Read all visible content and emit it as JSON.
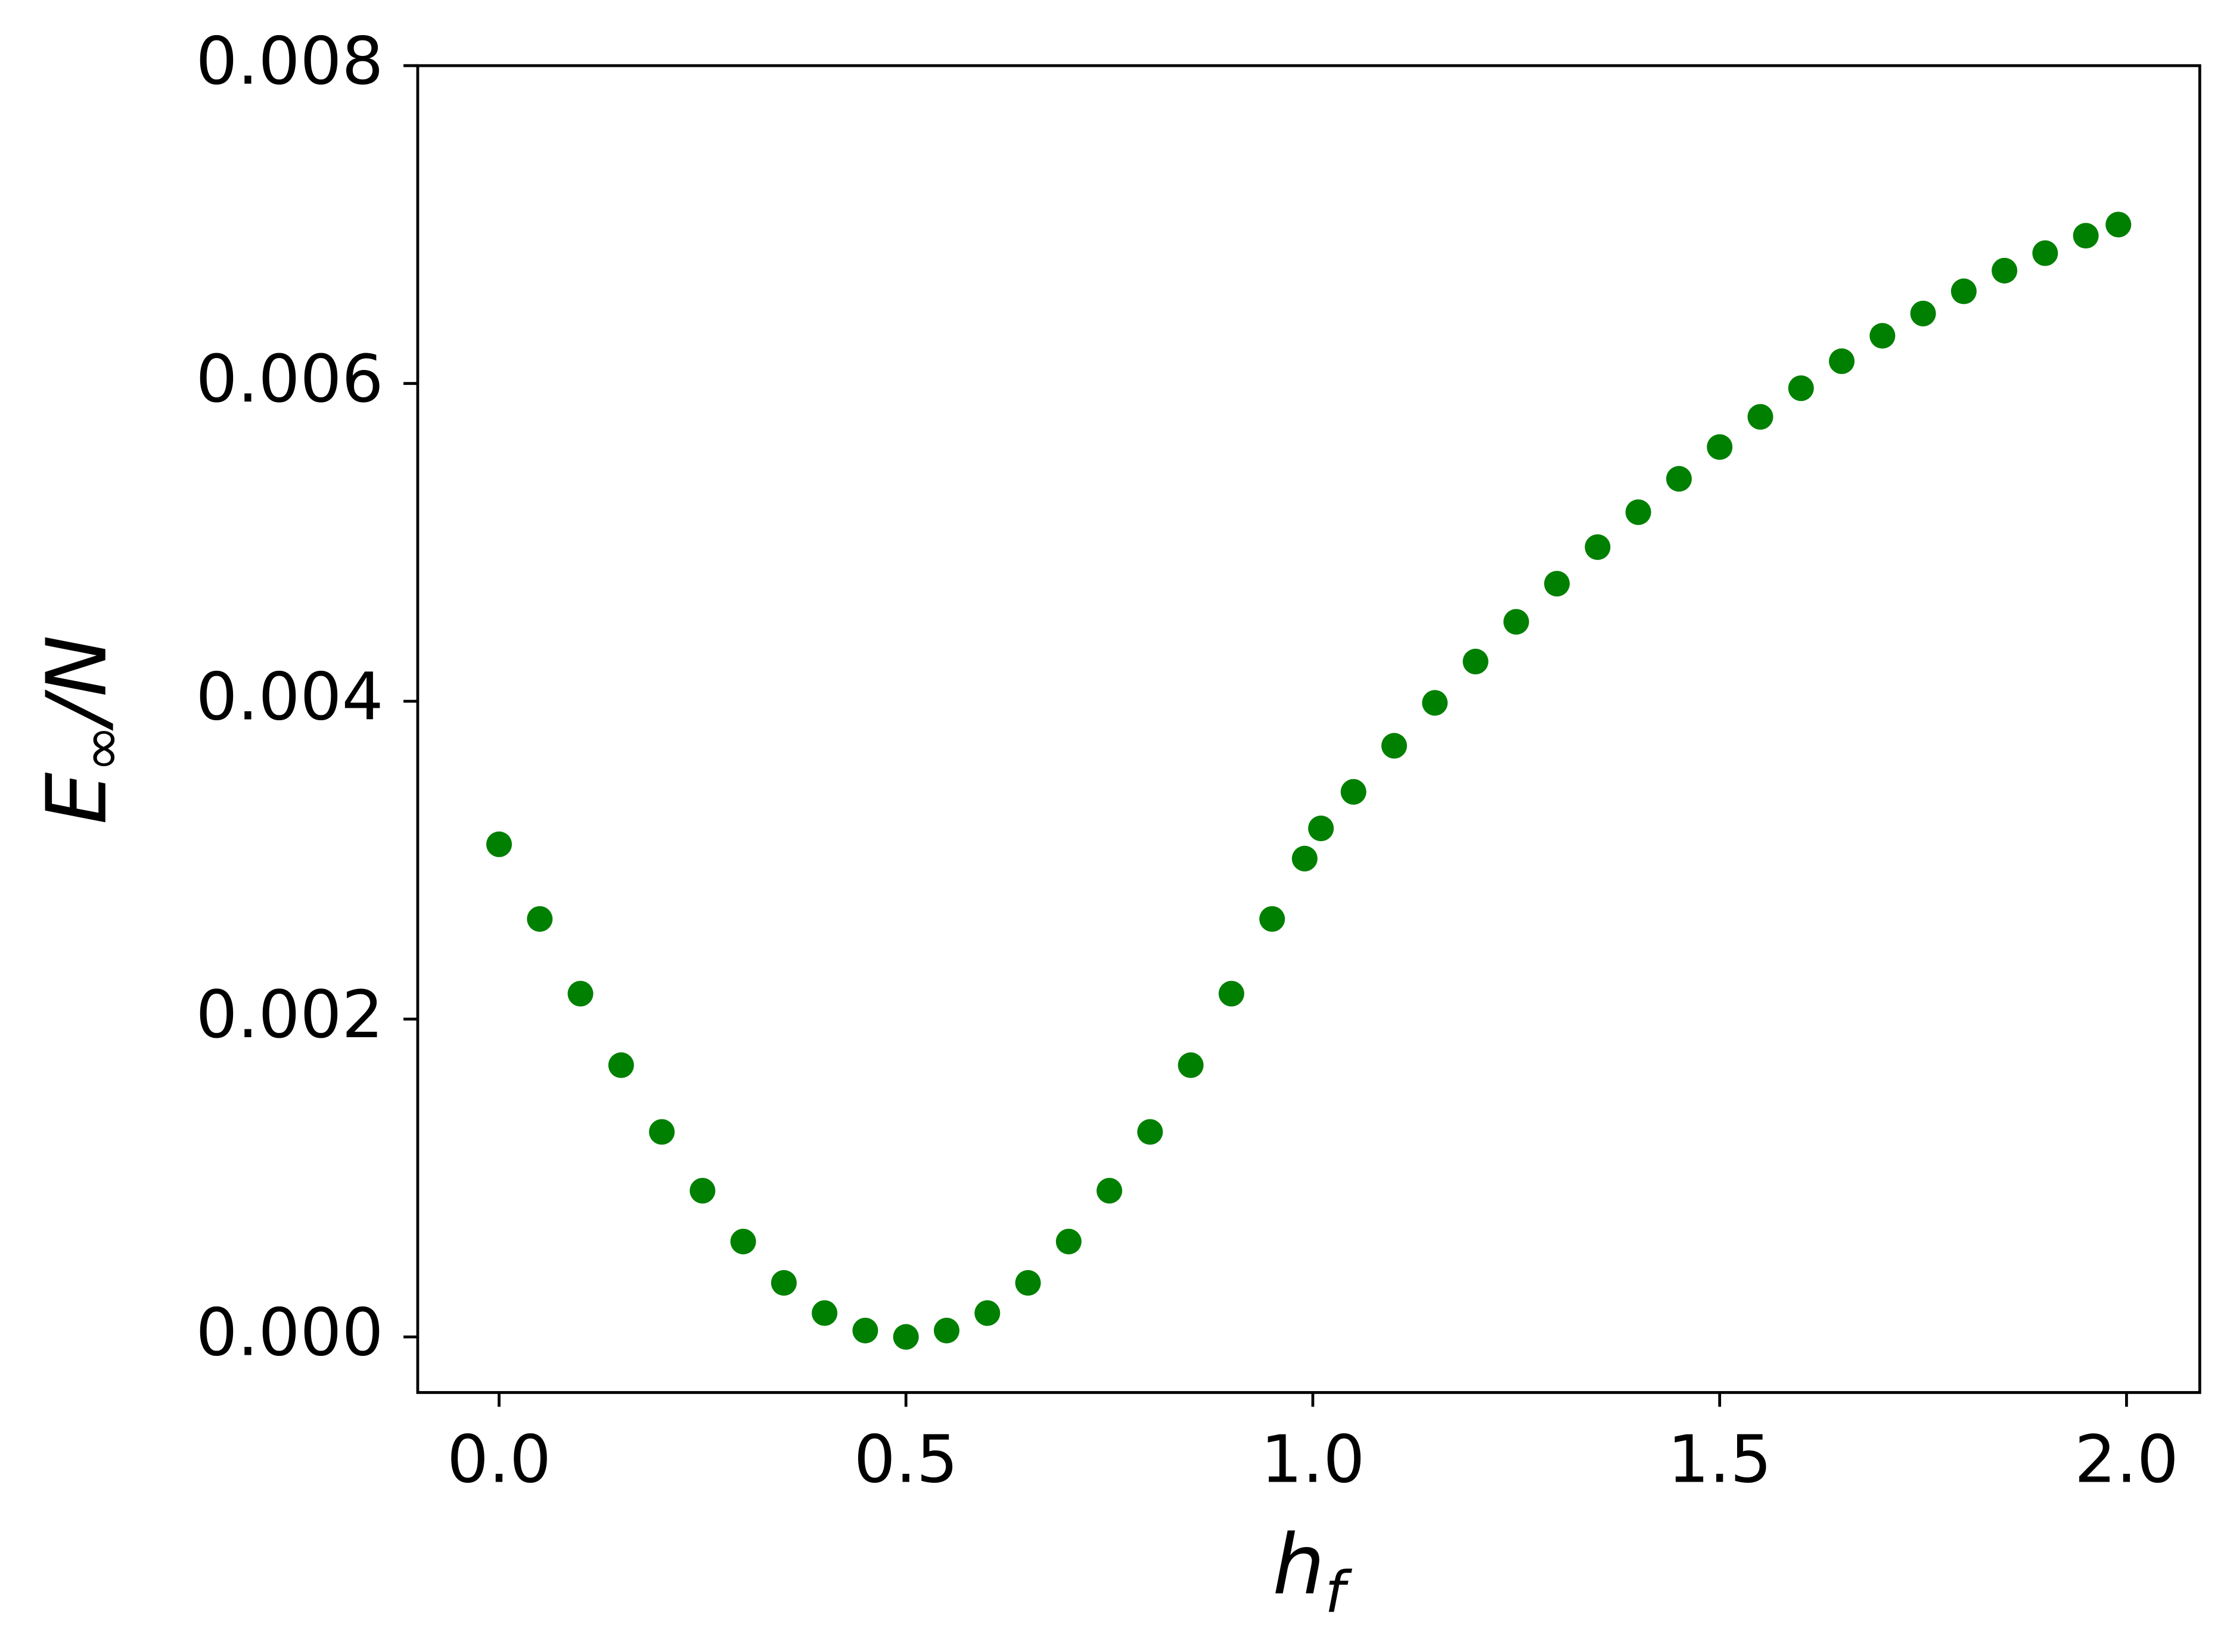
{
  "chart_data": {
    "type": "scatter",
    "xlabel": {
      "base": "h",
      "sub": "f"
    },
    "ylabel": {
      "base": "E",
      "sub": "∞",
      "rest": "/N"
    },
    "series": [
      {
        "color": "#008000",
        "x": [
          0,
          0.05,
          0.1,
          0.15,
          0.2,
          0.25,
          0.3,
          0.35,
          0.4,
          0.45,
          0.5,
          0.55,
          0.6,
          0.65,
          0.7,
          0.75,
          0.8,
          0.85,
          0.9,
          0.95,
          0.99,
          1.01,
          1.05,
          1.1,
          1.15,
          1.2,
          1.25,
          1.3,
          1.35,
          1.4,
          1.45,
          1.5,
          1.55,
          1.6,
          1.65,
          1.7,
          1.75,
          1.8,
          1.85,
          1.9,
          1.95,
          1.99
        ],
        "values": [
          0.0031,
          0.00263,
          0.00216,
          0.00171,
          0.00129,
          0.00092,
          0.0006,
          0.00034,
          0.00015,
          4e-05,
          0,
          4e-05,
          0.00015,
          0.00034,
          0.0006,
          0.00092,
          0.00129,
          0.00171,
          0.00216,
          0.00263,
          0.00301,
          0.0032,
          0.00343,
          0.00372,
          0.00399,
          0.00425,
          0.0045,
          0.00474,
          0.00497,
          0.00519,
          0.0054,
          0.0056,
          0.00579,
          0.00597,
          0.00614,
          0.0063,
          0.00644,
          0.00658,
          0.00671,
          0.00682,
          0.00693,
          0.007
        ]
      }
    ],
    "xlim": [
      -0.1,
      2.09
    ],
    "ylim": [
      -0.00035,
      0.008
    ],
    "xticks": [
      {
        "value": 0,
        "label": "0.0"
      },
      {
        "value": 0.5,
        "label": "0.5"
      },
      {
        "value": 1,
        "label": "1.0"
      },
      {
        "value": 1.5,
        "label": "1.5"
      },
      {
        "value": 2,
        "label": "2.0"
      }
    ],
    "yticks": [
      {
        "value": 0,
        "label": "0.000"
      },
      {
        "value": 0.002,
        "label": "0.002"
      },
      {
        "value": 0.004,
        "label": "0.004"
      },
      {
        "value": 0.006,
        "label": "0.006"
      },
      {
        "value": 0.008,
        "label": "0.008"
      }
    ],
    "grid": false
  }
}
